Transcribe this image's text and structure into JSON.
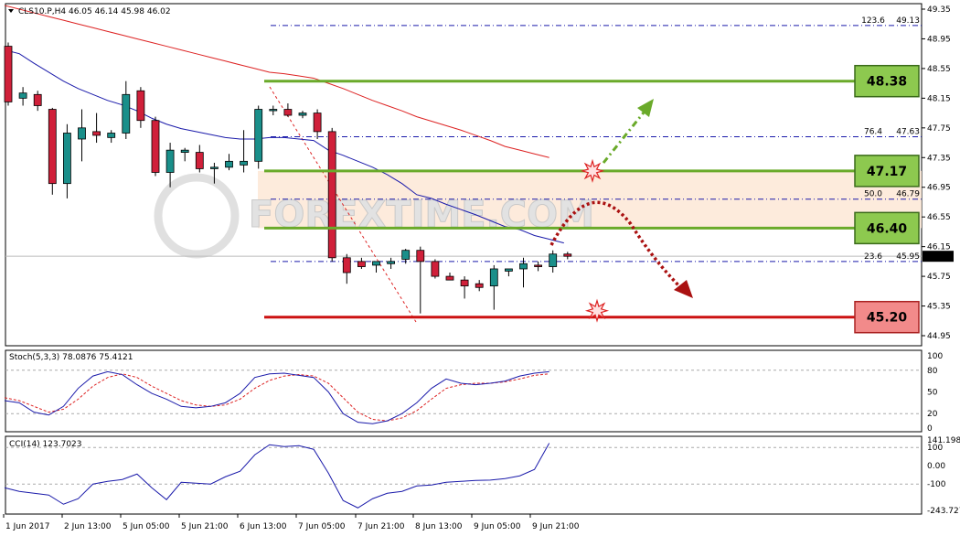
{
  "chart_data": {
    "type": "candlestick",
    "symbol_header": "CLS10.P,H4",
    "header_ohlc": [
      "46.05",
      "46.14",
      "45.98",
      "46.02"
    ],
    "current_price": "46.02",
    "price_ticks": [
      "49.35",
      "48.95",
      "48.55",
      "48.15",
      "47.75",
      "47.35",
      "46.95",
      "46.55",
      "46.15",
      "45.75",
      "45.35",
      "44.95"
    ],
    "price_ylim": [
      44.95,
      49.35
    ],
    "x_labels": [
      "1 Jun 2017",
      "2 Jun 13:00",
      "5 Jun 05:00",
      "5 Jun 21:00",
      "6 Jun 13:00",
      "7 Jun 05:00",
      "7 Jun 21:00",
      "8 Jun 13:00",
      "9 Jun 05:00",
      "9 Jun 21:00"
    ],
    "candles": [
      {
        "o": 48.85,
        "h": 48.9,
        "l": 48.05,
        "c": 48.1
      },
      {
        "o": 48.15,
        "h": 48.3,
        "l": 48.05,
        "c": 48.22
      },
      {
        "o": 48.2,
        "h": 48.25,
        "l": 47.98,
        "c": 48.05
      },
      {
        "o": 48.0,
        "h": 48.02,
        "l": 46.85,
        "c": 47.0
      },
      {
        "o": 47.0,
        "h": 47.8,
        "l": 46.8,
        "c": 47.68
      },
      {
        "o": 47.6,
        "h": 48.0,
        "l": 47.3,
        "c": 47.75
      },
      {
        "o": 47.7,
        "h": 47.95,
        "l": 47.55,
        "c": 47.65
      },
      {
        "o": 47.62,
        "h": 47.72,
        "l": 47.55,
        "c": 47.68
      },
      {
        "o": 47.68,
        "h": 48.38,
        "l": 47.6,
        "c": 48.2
      },
      {
        "o": 48.25,
        "h": 48.3,
        "l": 47.75,
        "c": 47.85
      },
      {
        "o": 47.85,
        "h": 47.9,
        "l": 47.1,
        "c": 47.15
      },
      {
        "o": 47.15,
        "h": 47.55,
        "l": 46.95,
        "c": 47.45
      },
      {
        "o": 47.42,
        "h": 47.48,
        "l": 47.3,
        "c": 47.45
      },
      {
        "o": 47.42,
        "h": 47.52,
        "l": 47.15,
        "c": 47.2
      },
      {
        "o": 47.2,
        "h": 47.28,
        "l": 47.0,
        "c": 47.22
      },
      {
        "o": 47.22,
        "h": 47.4,
        "l": 47.18,
        "c": 47.3
      },
      {
        "o": 47.25,
        "h": 47.72,
        "l": 47.15,
        "c": 47.3
      },
      {
        "o": 47.3,
        "h": 48.05,
        "l": 47.2,
        "c": 48.0
      },
      {
        "o": 48.0,
        "h": 48.05,
        "l": 47.92,
        "c": 48.0
      },
      {
        "o": 48.0,
        "h": 48.08,
        "l": 47.9,
        "c": 47.92
      },
      {
        "o": 47.92,
        "h": 47.98,
        "l": 47.88,
        "c": 47.95
      },
      {
        "o": 47.95,
        "h": 48.0,
        "l": 47.6,
        "c": 47.7
      },
      {
        "o": 47.7,
        "h": 47.75,
        "l": 45.95,
        "c": 46.0
      },
      {
        "o": 46.0,
        "h": 46.05,
        "l": 45.65,
        "c": 45.8
      },
      {
        "o": 45.95,
        "h": 46.0,
        "l": 45.85,
        "c": 45.88
      },
      {
        "o": 45.9,
        "h": 45.95,
        "l": 45.8,
        "c": 45.95
      },
      {
        "o": 45.92,
        "h": 46.0,
        "l": 45.85,
        "c": 45.95
      },
      {
        "o": 45.98,
        "h": 46.12,
        "l": 45.92,
        "c": 46.1
      },
      {
        "o": 46.1,
        "h": 46.15,
        "l": 45.25,
        "c": 45.95
      },
      {
        "o": 45.95,
        "h": 45.98,
        "l": 45.72,
        "c": 45.75
      },
      {
        "o": 45.75,
        "h": 45.8,
        "l": 45.7,
        "c": 45.7
      },
      {
        "o": 45.7,
        "h": 45.75,
        "l": 45.45,
        "c": 45.62
      },
      {
        "o": 45.65,
        "h": 45.7,
        "l": 45.55,
        "c": 45.6
      },
      {
        "o": 45.62,
        "h": 45.9,
        "l": 45.3,
        "c": 45.85
      },
      {
        "o": 45.82,
        "h": 45.85,
        "l": 45.75,
        "c": 45.85
      },
      {
        "o": 45.85,
        "h": 46.0,
        "l": 45.6,
        "c": 45.92
      },
      {
        "o": 45.9,
        "h": 45.95,
        "l": 45.82,
        "c": 45.88
      },
      {
        "o": 45.88,
        "h": 46.1,
        "l": 45.8,
        "c": 46.05
      },
      {
        "o": 46.05,
        "h": 46.08,
        "l": 45.98,
        "c": 46.02
      }
    ],
    "ma_blue": [
      48.8,
      48.75,
      48.62,
      48.5,
      48.38,
      48.28,
      48.2,
      48.12,
      48.06,
      47.98,
      47.88,
      47.8,
      47.74,
      47.7,
      47.66,
      47.62,
      47.6,
      47.6,
      47.62,
      47.62,
      47.6,
      47.58,
      47.45,
      47.38,
      47.3,
      47.22,
      47.12,
      47.0,
      46.85,
      46.8,
      46.72,
      46.65,
      46.58,
      46.5,
      46.42,
      46.38,
      46.3,
      46.25,
      46.2
    ],
    "ma_red": [
      49.4,
      49.35,
      49.3,
      49.25,
      49.2,
      49.15,
      49.1,
      49.05,
      49.0,
      48.95,
      48.9,
      48.85,
      48.8,
      48.75,
      48.7,
      48.65,
      48.6,
      48.55,
      48.5,
      48.48,
      48.45,
      48.42,
      48.35,
      48.28,
      48.2,
      48.12,
      48.05,
      47.98,
      47.9,
      47.84,
      47.78,
      47.72,
      47.65,
      47.58,
      47.5,
      47.45,
      47.4,
      47.35
    ],
    "levels": [
      {
        "label": "48.38",
        "value": 48.38,
        "color": "#6aaa2a"
      },
      {
        "label": "47.17",
        "value": 47.17,
        "color": "#6aaa2a"
      },
      {
        "label": "46.40",
        "value": 46.4,
        "color": "#6aaa2a"
      },
      {
        "label": "45.20",
        "value": 45.2,
        "color": "#cc1111"
      }
    ],
    "fib": [
      {
        "pct": "123.6",
        "price": "49.13"
      },
      {
        "pct": "76.4",
        "price": "47.63"
      },
      {
        "pct": "50.0",
        "price": "46.79"
      },
      {
        "pct": "23.6",
        "price": "45.95"
      }
    ],
    "zone": {
      "low": 46.4,
      "high": 47.17
    },
    "watermark": "FOREXTIME.COM",
    "stoch": {
      "header": "Stoch(5,3,3) 78.0876 75.4121",
      "ticks": [
        "100",
        "80",
        "50",
        "20",
        "0"
      ],
      "ylim": [
        0,
        100
      ],
      "main": [
        38,
        35,
        22,
        18,
        30,
        55,
        72,
        78,
        74,
        60,
        48,
        40,
        30,
        28,
        30,
        35,
        48,
        70,
        75,
        76,
        73,
        70,
        50,
        20,
        8,
        6,
        10,
        20,
        35,
        55,
        68,
        62,
        60,
        62,
        65,
        72,
        76,
        78
      ],
      "signal": [
        42,
        38,
        30,
        22,
        26,
        40,
        58,
        70,
        75,
        70,
        58,
        48,
        38,
        32,
        30,
        32,
        40,
        55,
        66,
        72,
        74,
        72,
        62,
        42,
        22,
        12,
        10,
        14,
        24,
        40,
        55,
        60,
        62,
        62,
        64,
        68,
        73,
        75
      ]
    },
    "cci": {
      "header": "CCI(14) 123.7023",
      "ticks": [
        "141.1989",
        "100",
        "0.00",
        "-100",
        "-243.727"
      ],
      "ylim": [
        -243.727,
        141.1989
      ],
      "values": [
        -120,
        -140,
        -150,
        -160,
        -210,
        -180,
        -100,
        -85,
        -75,
        -45,
        -120,
        -185,
        -90,
        -95,
        -100,
        -60,
        -30,
        60,
        115,
        105,
        110,
        90,
        -40,
        -190,
        -230,
        -180,
        -150,
        -140,
        -110,
        -105,
        -90,
        -85,
        -80,
        -78,
        -70,
        -55,
        -20,
        123.7
      ]
    }
  }
}
